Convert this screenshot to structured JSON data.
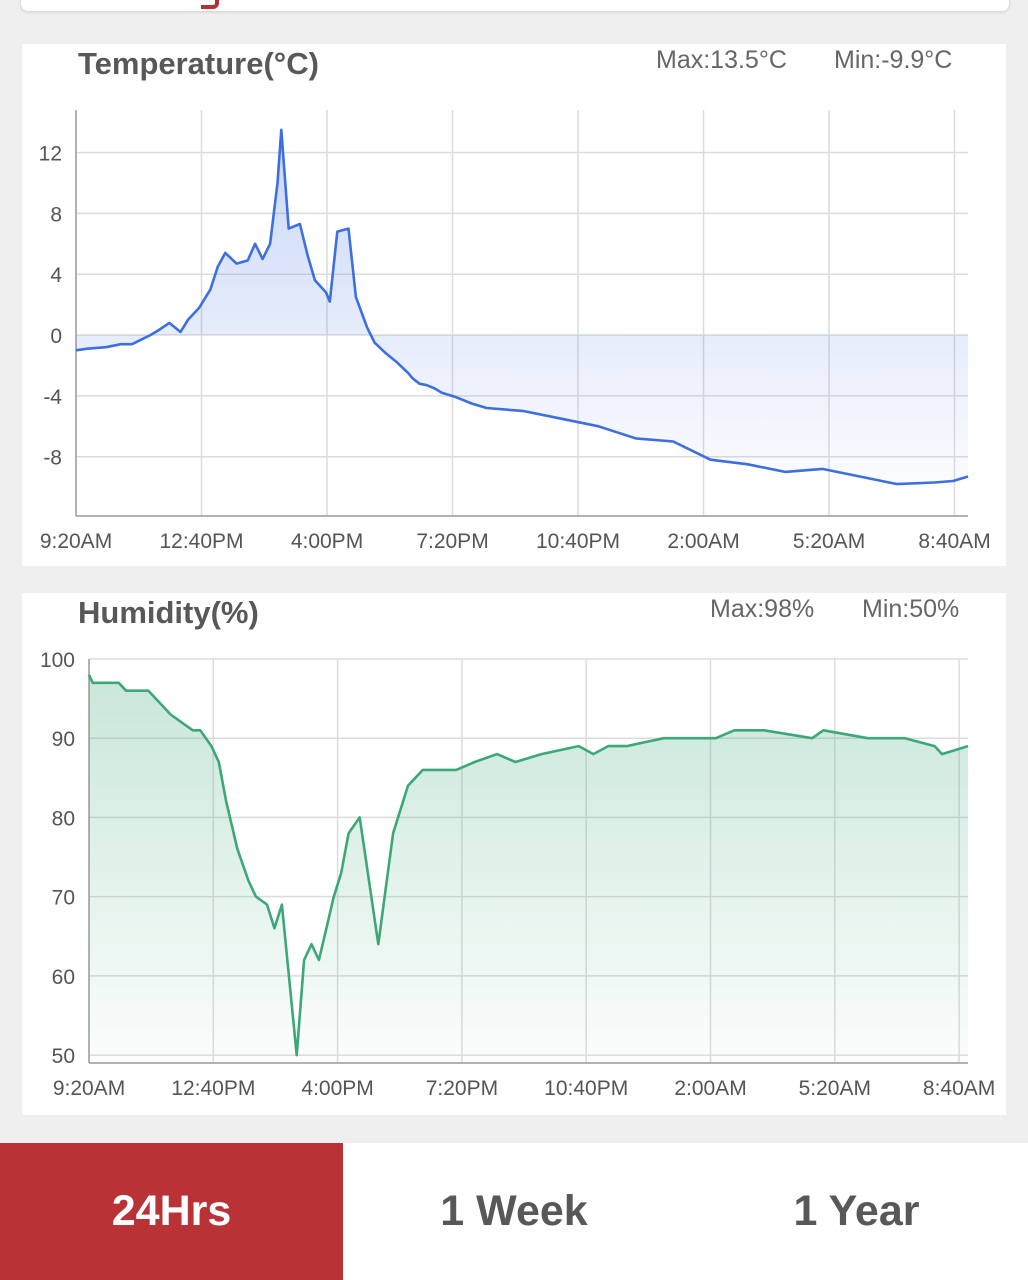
{
  "colors": {
    "temperature_line": "#3d6fe0",
    "humidity_line": "#3da877",
    "active_tab": "#b83236"
  },
  "temperature": {
    "title": "Temperature(°C)",
    "max": "Max:13.5°C",
    "min": "Min:-9.9°C"
  },
  "humidity": {
    "title": "Humidity(%)",
    "max": "Max:98%",
    "min": "Min:50%"
  },
  "tabs": [
    {
      "label": "24Hrs",
      "active": true
    },
    {
      "label": "1 Week",
      "active": false
    },
    {
      "label": "1 Year",
      "active": false
    }
  ],
  "chart_data": [
    {
      "type": "area",
      "title": "Temperature(°C)",
      "xlabel": "",
      "ylabel": "",
      "x_ticks": [
        "9:20AM",
        "12:40PM",
        "4:00PM",
        "7:20PM",
        "10:40PM",
        "2:00AM",
        "5:20AM",
        "8:40AM"
      ],
      "y_ticks": [
        12,
        8,
        4,
        0,
        -4,
        -8
      ],
      "ylim": [
        -11.9,
        14.8
      ],
      "xlim_hours": [
        0,
        23.9
      ],
      "grid": true,
      "series": [
        {
          "x": [
            0,
            0.3,
            0.8,
            1.2,
            1.5,
            2.0,
            2.2,
            2.5,
            2.8,
            3.0,
            3.3,
            3.6,
            3.8,
            4.0,
            4.3,
            4.6,
            4.8,
            5.0,
            5.2,
            5.4,
            5.5,
            5.7,
            6.0,
            6.2,
            6.4,
            6.7,
            6.8,
            7.0,
            7.3,
            7.5,
            7.8,
            8.0,
            8.3,
            8.6,
            8.9,
            9.0,
            9.1,
            9.2,
            9.4,
            9.6,
            9.8,
            10.2,
            10.6,
            11.0,
            12.0,
            13.0,
            14.0,
            15.0,
            16.0,
            17.0,
            18.0,
            19.0,
            20.0,
            21.0,
            22.0,
            23.0,
            23.5,
            23.9
          ],
          "values": [
            -1.0,
            -0.9,
            -0.8,
            -0.6,
            -0.6,
            0.0,
            0.3,
            0.8,
            0.2,
            1.0,
            1.8,
            3.0,
            4.5,
            5.4,
            4.7,
            4.9,
            6.0,
            5.0,
            6.0,
            10.0,
            13.5,
            7.0,
            7.3,
            5.3,
            3.6,
            2.8,
            2.2,
            6.8,
            7.0,
            2.5,
            0.5,
            -0.5,
            -1.2,
            -1.8,
            -2.5,
            -2.8,
            -3.0,
            -3.2,
            -3.3,
            -3.5,
            -3.8,
            -4.1,
            -4.5,
            -4.8,
            -5.0,
            -5.5,
            -6.0,
            -6.8,
            -7.0,
            -8.2,
            -8.5,
            -9.0,
            -8.8,
            -9.3,
            -9.8,
            -9.7,
            -9.6,
            -9.3
          ]
        }
      ]
    },
    {
      "type": "area",
      "title": "Humidity(%)",
      "xlabel": "",
      "ylabel": "",
      "x_ticks": [
        "9:20AM",
        "12:40PM",
        "4:00PM",
        "7:20PM",
        "10:40PM",
        "2:00AM",
        "5:20AM",
        "8:40AM"
      ],
      "y_ticks": [
        100,
        90,
        80,
        70,
        60,
        50
      ],
      "ylim": [
        49,
        100
      ],
      "xlim_hours": [
        0,
        23.7
      ],
      "grid": true,
      "series": [
        {
          "x": [
            0,
            0.1,
            0.8,
            1.0,
            1.6,
            1.8,
            2.0,
            2.2,
            2.5,
            2.8,
            3.0,
            3.3,
            3.5,
            3.7,
            4.0,
            4.3,
            4.5,
            4.8,
            5.0,
            5.2,
            5.6,
            5.8,
            6.0,
            6.2,
            6.4,
            6.6,
            6.8,
            7.0,
            7.3,
            7.8,
            8.2,
            8.6,
            9.0,
            9.4,
            9.9,
            10.4,
            11.0,
            11.5,
            12.2,
            13.2,
            13.6,
            14.0,
            14.5,
            15.5,
            16.9,
            17.4,
            18.2,
            19.5,
            19.8,
            21.0,
            22.0,
            22.8,
            23.0,
            23.7
          ],
          "values": [
            98,
            97,
            97,
            96,
            96,
            95,
            94,
            93,
            92,
            91,
            91,
            89,
            87,
            82,
            76,
            72,
            70,
            69,
            66,
            69,
            50,
            62,
            64,
            62,
            66,
            70,
            73,
            78,
            80,
            64,
            78,
            84,
            86,
            86,
            86,
            87,
            88,
            87,
            88,
            89,
            88,
            89,
            89,
            90,
            90,
            91,
            91,
            90,
            91,
            90,
            90,
            89,
            88,
            89
          ]
        }
      ]
    }
  ]
}
